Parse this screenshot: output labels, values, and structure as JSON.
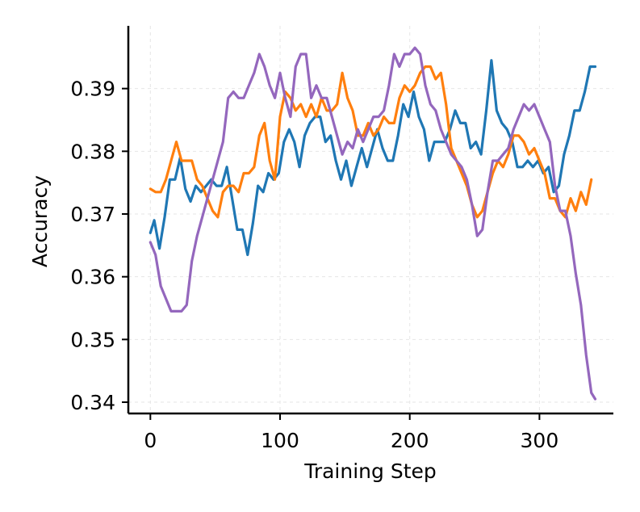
{
  "chart_data": {
    "type": "line",
    "title": "",
    "xlabel": "Training Step",
    "ylabel": "Accuracy",
    "xlim": [
      -17,
      357
    ],
    "ylim": [
      0.3382,
      0.4
    ],
    "xticks": [
      0,
      100,
      200,
      300
    ],
    "xtick_labels": [
      "0",
      "100",
      "200",
      "300"
    ],
    "yticks": [
      0.34,
      0.35,
      0.36,
      0.37,
      0.38,
      0.39
    ],
    "ytick_labels": [
      "0.34",
      "0.35",
      "0.36",
      "0.37",
      "0.38",
      "0.39"
    ],
    "grid": true,
    "legend": "none",
    "series": [
      {
        "color": "#1f77b4",
        "points": [
          [
            0,
            0.367
          ],
          [
            3,
            0.369
          ],
          [
            7,
            0.3645
          ],
          [
            11,
            0.3695
          ],
          [
            15,
            0.3755
          ],
          [
            19,
            0.3755
          ],
          [
            23,
            0.379
          ],
          [
            27,
            0.374
          ],
          [
            31,
            0.372
          ],
          [
            35,
            0.3745
          ],
          [
            39,
            0.3735
          ],
          [
            43,
            0.3745
          ],
          [
            47,
            0.3755
          ],
          [
            51,
            0.3745
          ],
          [
            55,
            0.3745
          ],
          [
            59,
            0.3775
          ],
          [
            63,
            0.3725
          ],
          [
            67,
            0.3675
          ],
          [
            71,
            0.3675
          ],
          [
            75,
            0.3635
          ],
          [
            79,
            0.3685
          ],
          [
            83,
            0.3745
          ],
          [
            87,
            0.3735
          ],
          [
            91,
            0.3765
          ],
          [
            95,
            0.3755
          ],
          [
            99,
            0.3765
          ],
          [
            103,
            0.3815
          ],
          [
            107,
            0.3835
          ],
          [
            111,
            0.3815
          ],
          [
            115,
            0.3775
          ],
          [
            119,
            0.3825
          ],
          [
            123,
            0.3845
          ],
          [
            127,
            0.3855
          ],
          [
            131,
            0.3855
          ],
          [
            135,
            0.3815
          ],
          [
            139,
            0.3825
          ],
          [
            143,
            0.3785
          ],
          [
            147,
            0.3755
          ],
          [
            151,
            0.3785
          ],
          [
            155,
            0.3745
          ],
          [
            159,
            0.3775
          ],
          [
            163,
            0.3805
          ],
          [
            167,
            0.3775
          ],
          [
            171,
            0.3805
          ],
          [
            175,
            0.3835
          ],
          [
            179,
            0.3805
          ],
          [
            183,
            0.3785
          ],
          [
            187,
            0.3785
          ],
          [
            191,
            0.3825
          ],
          [
            195,
            0.3875
          ],
          [
            199,
            0.3855
          ],
          [
            203,
            0.3895
          ],
          [
            207,
            0.3855
          ],
          [
            211,
            0.3835
          ],
          [
            215,
            0.3785
          ],
          [
            219,
            0.3815
          ],
          [
            223,
            0.3815
          ],
          [
            227,
            0.3815
          ],
          [
            231,
            0.3835
          ],
          [
            235,
            0.3865
          ],
          [
            239,
            0.3845
          ],
          [
            243,
            0.3845
          ],
          [
            247,
            0.3805
          ],
          [
            251,
            0.3815
          ],
          [
            255,
            0.3795
          ],
          [
            259,
            0.3865
          ],
          [
            263,
            0.3945
          ],
          [
            267,
            0.3865
          ],
          [
            271,
            0.3845
          ],
          [
            275,
            0.3835
          ],
          [
            279,
            0.3815
          ],
          [
            283,
            0.3775
          ],
          [
            287,
            0.3775
          ],
          [
            291,
            0.3785
          ],
          [
            295,
            0.3775
          ],
          [
            299,
            0.3785
          ],
          [
            303,
            0.3765
          ],
          [
            307,
            0.3775
          ],
          [
            311,
            0.3735
          ],
          [
            315,
            0.3745
          ],
          [
            319,
            0.3795
          ],
          [
            323,
            0.3825
          ],
          [
            327,
            0.3865
          ],
          [
            331,
            0.3865
          ],
          [
            335,
            0.3895
          ],
          [
            339,
            0.3935
          ],
          [
            343,
            0.3935
          ]
        ]
      },
      {
        "color": "#ff7f0e",
        "points": [
          [
            0,
            0.374
          ],
          [
            4,
            0.3735
          ],
          [
            8,
            0.3735
          ],
          [
            12,
            0.3755
          ],
          [
            16,
            0.3785
          ],
          [
            20,
            0.3815
          ],
          [
            24,
            0.3785
          ],
          [
            28,
            0.3785
          ],
          [
            32,
            0.3785
          ],
          [
            36,
            0.3755
          ],
          [
            40,
            0.3745
          ],
          [
            44,
            0.3725
          ],
          [
            48,
            0.3705
          ],
          [
            52,
            0.3695
          ],
          [
            56,
            0.3735
          ],
          [
            60,
            0.3745
          ],
          [
            64,
            0.3745
          ],
          [
            68,
            0.3735
          ],
          [
            72,
            0.3765
          ],
          [
            76,
            0.3765
          ],
          [
            80,
            0.3775
          ],
          [
            84,
            0.3825
          ],
          [
            88,
            0.3845
          ],
          [
            92,
            0.3785
          ],
          [
            96,
            0.3755
          ],
          [
            100,
            0.3855
          ],
          [
            104,
            0.3895
          ],
          [
            108,
            0.3885
          ],
          [
            112,
            0.3865
          ],
          [
            116,
            0.3875
          ],
          [
            120,
            0.3855
          ],
          [
            124,
            0.3875
          ],
          [
            128,
            0.3855
          ],
          [
            132,
            0.3885
          ],
          [
            136,
            0.3865
          ],
          [
            140,
            0.3865
          ],
          [
            144,
            0.3875
          ],
          [
            148,
            0.3925
          ],
          [
            152,
            0.3885
          ],
          [
            156,
            0.3865
          ],
          [
            160,
            0.3825
          ],
          [
            164,
            0.3825
          ],
          [
            168,
            0.3845
          ],
          [
            172,
            0.3825
          ],
          [
            176,
            0.3835
          ],
          [
            180,
            0.3855
          ],
          [
            184,
            0.3845
          ],
          [
            188,
            0.3845
          ],
          [
            192,
            0.3885
          ],
          [
            196,
            0.3905
          ],
          [
            200,
            0.3895
          ],
          [
            204,
            0.3905
          ],
          [
            208,
            0.3925
          ],
          [
            212,
            0.3935
          ],
          [
            216,
            0.3935
          ],
          [
            220,
            0.3915
          ],
          [
            224,
            0.3925
          ],
          [
            228,
            0.3875
          ],
          [
            232,
            0.3805
          ],
          [
            236,
            0.3785
          ],
          [
            240,
            0.3765
          ],
          [
            244,
            0.3745
          ],
          [
            248,
            0.3715
          ],
          [
            252,
            0.3695
          ],
          [
            256,
            0.3705
          ],
          [
            260,
            0.3735
          ],
          [
            264,
            0.3765
          ],
          [
            268,
            0.3785
          ],
          [
            272,
            0.3775
          ],
          [
            276,
            0.3795
          ],
          [
            280,
            0.3825
          ],
          [
            284,
            0.3825
          ],
          [
            288,
            0.3815
          ],
          [
            292,
            0.3795
          ],
          [
            296,
            0.3805
          ],
          [
            300,
            0.3785
          ],
          [
            304,
            0.3765
          ],
          [
            308,
            0.3725
          ],
          [
            312,
            0.3725
          ],
          [
            316,
            0.3705
          ],
          [
            320,
            0.3695
          ],
          [
            324,
            0.3725
          ],
          [
            328,
            0.3705
          ],
          [
            332,
            0.3735
          ],
          [
            336,
            0.3715
          ],
          [
            340,
            0.3755
          ]
        ]
      },
      {
        "color": "#9467bd",
        "points": [
          [
            0,
            0.3655
          ],
          [
            4,
            0.3635
          ],
          [
            8,
            0.3585
          ],
          [
            12,
            0.3565
          ],
          [
            16,
            0.3545
          ],
          [
            20,
            0.3545
          ],
          [
            24,
            0.3545
          ],
          [
            28,
            0.3555
          ],
          [
            32,
            0.3625
          ],
          [
            36,
            0.3665
          ],
          [
            40,
            0.3695
          ],
          [
            44,
            0.3725
          ],
          [
            48,
            0.3755
          ],
          [
            52,
            0.3785
          ],
          [
            56,
            0.3815
          ],
          [
            60,
            0.3885
          ],
          [
            64,
            0.3895
          ],
          [
            68,
            0.3885
          ],
          [
            72,
            0.3885
          ],
          [
            76,
            0.3905
          ],
          [
            80,
            0.3925
          ],
          [
            84,
            0.3955
          ],
          [
            88,
            0.3935
          ],
          [
            92,
            0.3905
          ],
          [
            96,
            0.3885
          ],
          [
            100,
            0.3925
          ],
          [
            104,
            0.3885
          ],
          [
            108,
            0.3855
          ],
          [
            112,
            0.3935
          ],
          [
            116,
            0.3955
          ],
          [
            120,
            0.3955
          ],
          [
            124,
            0.3885
          ],
          [
            128,
            0.3905
          ],
          [
            132,
            0.3885
          ],
          [
            136,
            0.3885
          ],
          [
            140,
            0.3855
          ],
          [
            144,
            0.3825
          ],
          [
            148,
            0.3795
          ],
          [
            152,
            0.3815
          ],
          [
            156,
            0.3805
          ],
          [
            160,
            0.3835
          ],
          [
            164,
            0.3815
          ],
          [
            168,
            0.3835
          ],
          [
            172,
            0.3855
          ],
          [
            176,
            0.3855
          ],
          [
            180,
            0.3865
          ],
          [
            184,
            0.3905
          ],
          [
            188,
            0.3955
          ],
          [
            192,
            0.3935
          ],
          [
            196,
            0.3955
          ],
          [
            200,
            0.3955
          ],
          [
            204,
            0.3965
          ],
          [
            208,
            0.3955
          ],
          [
            212,
            0.3905
          ],
          [
            216,
            0.3875
          ],
          [
            220,
            0.3865
          ],
          [
            224,
            0.3835
          ],
          [
            228,
            0.3815
          ],
          [
            232,
            0.3795
          ],
          [
            236,
            0.3785
          ],
          [
            240,
            0.3775
          ],
          [
            244,
            0.3755
          ],
          [
            248,
            0.3715
          ],
          [
            252,
            0.3665
          ],
          [
            256,
            0.3675
          ],
          [
            260,
            0.3735
          ],
          [
            264,
            0.3785
          ],
          [
            268,
            0.3785
          ],
          [
            272,
            0.3795
          ],
          [
            276,
            0.3805
          ],
          [
            280,
            0.3835
          ],
          [
            284,
            0.3855
          ],
          [
            288,
            0.3875
          ],
          [
            292,
            0.3865
          ],
          [
            296,
            0.3875
          ],
          [
            300,
            0.3855
          ],
          [
            304,
            0.3835
          ],
          [
            308,
            0.3815
          ],
          [
            312,
            0.3745
          ],
          [
            316,
            0.3705
          ],
          [
            320,
            0.3705
          ],
          [
            324,
            0.3665
          ],
          [
            328,
            0.3605
          ],
          [
            332,
            0.3555
          ],
          [
            336,
            0.3475
          ],
          [
            340,
            0.3415
          ],
          [
            343,
            0.3405
          ]
        ]
      }
    ]
  }
}
